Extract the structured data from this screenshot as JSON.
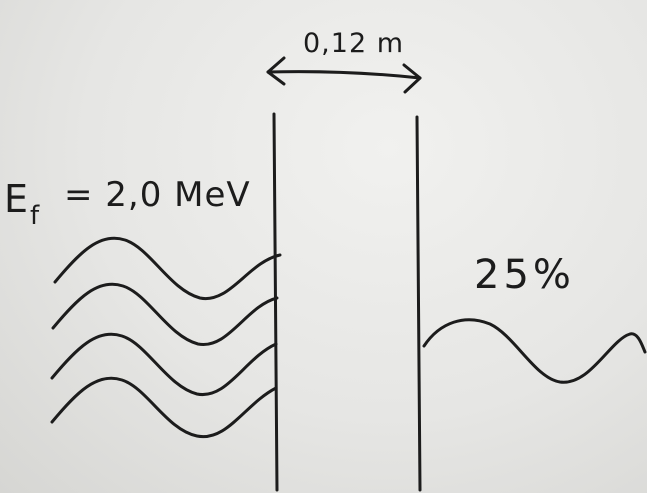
{
  "diagram": {
    "barrier_width_label": "0,12 m",
    "energy_label": "E",
    "energy_subscript": "f",
    "energy_value": "= 2,0 MeV",
    "transmission_label": "25%"
  },
  "colors": {
    "paper": "#e6e6e4",
    "ink": "#1c1c1c"
  }
}
